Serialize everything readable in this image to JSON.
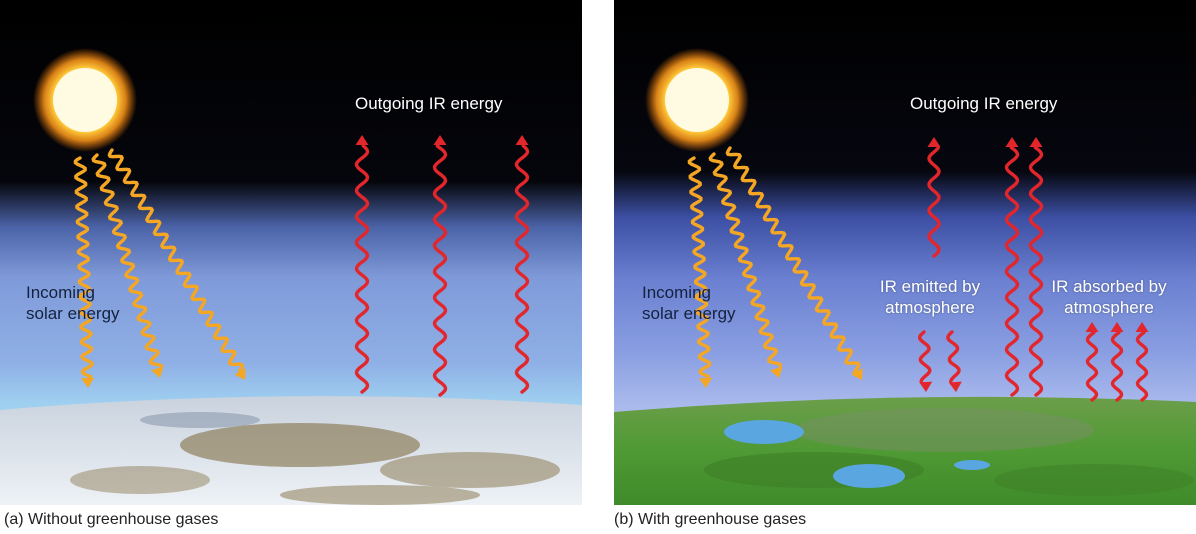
{
  "colors": {
    "space": "#000000",
    "atmosphere": "#6f8fd6",
    "solar_arrow": "#f5a623",
    "ir_arrow": "#e3262b",
    "ice": "#dfe6ee",
    "land_ice_brown": "#7a6434",
    "grass": "#4f9a34",
    "lake": "#5aa6e0"
  },
  "panel_a": {
    "outgoing_label": "Outgoing IR energy",
    "incoming_label_line1": "Incoming",
    "incoming_label_line2": "solar energy",
    "caption": "(a) Without greenhouse gases"
  },
  "panel_b": {
    "outgoing_label": "Outgoing IR energy",
    "incoming_label_line1": "Incoming",
    "incoming_label_line2": "solar energy",
    "emitted_label_line1": "IR emitted by",
    "emitted_label_line2": "atmosphere",
    "absorbed_label_line1": "IR absorbed by",
    "absorbed_label_line2": "atmosphere",
    "caption": "(b) With greenhouse gases"
  }
}
